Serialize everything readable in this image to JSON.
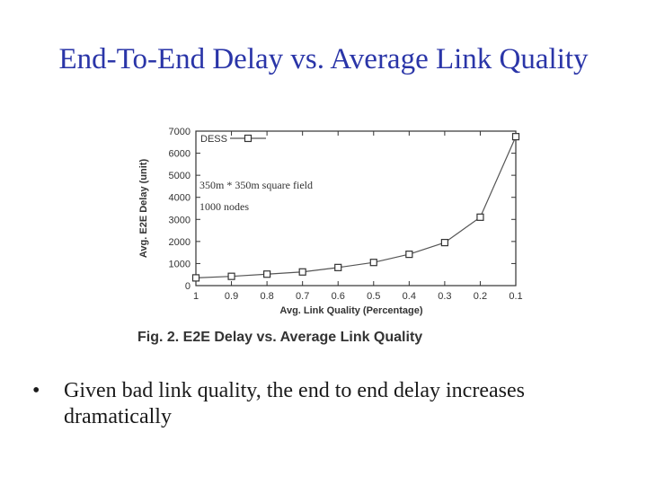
{
  "slide": {
    "title": "End-To-End Delay vs. Average Link Quality",
    "bullets": [
      "Given bad link quality, the end to end delay increases dramatically"
    ],
    "title_color": "#2a35a8"
  },
  "chart_data": {
    "type": "line",
    "caption": "Fig. 2. E2E Delay vs. Average Link Quality",
    "xlabel": "Avg. Link Quality (Percentage)",
    "ylabel": "Avg. E2E Delay (unit)",
    "x_tick_labels": [
      "1",
      "0.9",
      "0.8",
      "0.7",
      "0.6",
      "0.5",
      "0.4",
      "0.3",
      "0.2",
      "0.1"
    ],
    "y_ticks": [
      0,
      1000,
      2000,
      3000,
      4000,
      5000,
      6000,
      7000
    ],
    "ylim": [
      0,
      7000
    ],
    "x_reversed": true,
    "grid": false,
    "legend_position": "top-left",
    "annotations": [
      "350m * 350m square field",
      "1000 nodes"
    ],
    "series": [
      {
        "name": "DESS",
        "marker": "square",
        "color": "#555555",
        "x": [
          1,
          0.9,
          0.8,
          0.7,
          0.6,
          0.5,
          0.4,
          0.3,
          0.2,
          0.1
        ],
        "values": [
          350,
          420,
          520,
          620,
          820,
          1050,
          1420,
          1950,
          3100,
          6750
        ]
      }
    ]
  }
}
